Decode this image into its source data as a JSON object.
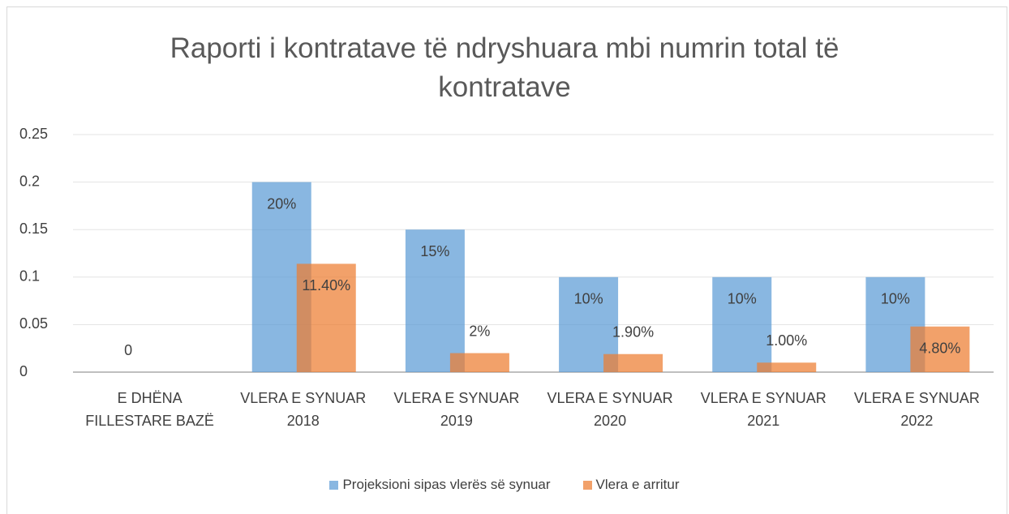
{
  "chart_data": {
    "type": "bar",
    "title": "Raporti i kontratave të ndryshuara mbi numrin total të kontratave",
    "categories": [
      "E DHËNA FILLESTARE BAZË",
      "VLERA E SYNUAR 2018",
      "VLERA E SYNUAR 2019",
      "VLERA E SYNUAR 2020",
      "VLERA E SYNUAR 2021",
      "VLERA E SYNUAR 2022"
    ],
    "series": [
      {
        "name": "Projeksioni sipas vlerës së synuar",
        "color": "#5b9bd5",
        "values": [
          0,
          0.2,
          0.15,
          0.1,
          0.1,
          0.1
        ],
        "value_labels": [
          "0",
          "20%",
          "15%",
          "10%",
          "10%",
          "10%"
        ]
      },
      {
        "name": "Vlera e arritur",
        "color": "#ed7d31",
        "values": [
          null,
          0.114,
          0.02,
          0.019,
          0.01,
          0.048
        ],
        "value_labels": [
          null,
          "11.40%",
          "2%",
          "1.90%",
          "1.00%",
          "4.80%"
        ]
      }
    ],
    "ylim": [
      0,
      0.25
    ],
    "yticks": [
      0,
      0.05,
      0.1,
      0.15,
      0.2,
      0.25
    ],
    "grid": true,
    "legend": "bottom"
  }
}
